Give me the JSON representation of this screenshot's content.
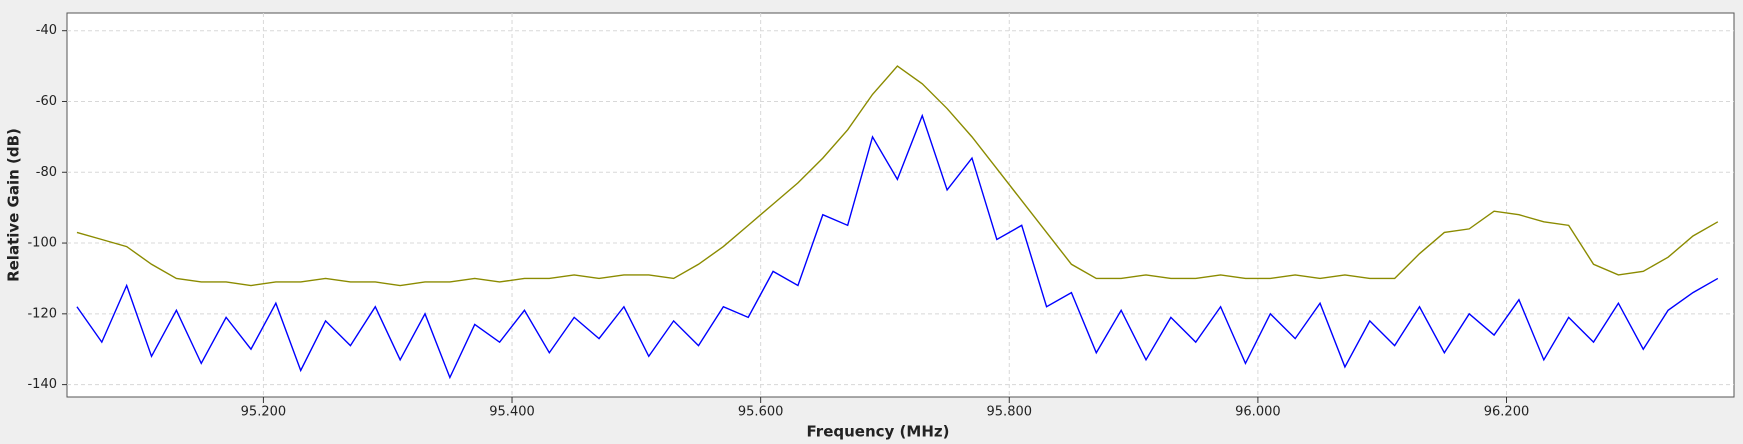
{
  "chart_data": {
    "type": "line",
    "xlabel": "Frequency (MHz)",
    "ylabel": "Relative Gain (dB)",
    "x": [
      95.05,
      95.07,
      95.09,
      95.11,
      95.13,
      95.15,
      95.17,
      95.19,
      95.21,
      95.23,
      95.25,
      95.27,
      95.29,
      95.31,
      95.33,
      95.35,
      95.37,
      95.39,
      95.41,
      95.43,
      95.45,
      95.47,
      95.49,
      95.51,
      95.53,
      95.55,
      95.57,
      95.59,
      95.61,
      95.63,
      95.65,
      95.67,
      95.69,
      95.71,
      95.73,
      95.75,
      95.77,
      95.79,
      95.81,
      95.83,
      95.85,
      95.87,
      95.89,
      95.91,
      95.93,
      95.95,
      95.97,
      95.99,
      96.01,
      96.03,
      96.05,
      96.07,
      96.09,
      96.11,
      96.13,
      96.15,
      96.17,
      96.19,
      96.21,
      96.23,
      96.25,
      96.27,
      96.29,
      96.31,
      96.33,
      96.35,
      96.37
    ],
    "series": [
      {
        "color": "#8b8b00",
        "values": [
          -97,
          -99,
          -101,
          -106,
          -110,
          -111,
          -111,
          -112,
          -111,
          -111,
          -110,
          -111,
          -111,
          -112,
          -111,
          -111,
          -110,
          -111,
          -110,
          -110,
          -109,
          -110,
          -109,
          -109,
          -110,
          -106,
          -101,
          -95,
          -89,
          -83,
          -76,
          -68,
          -58,
          -50,
          -55,
          -62,
          -70,
          -79,
          -88,
          -97,
          -106,
          -110,
          -110,
          -109,
          -110,
          -110,
          -109,
          -110,
          -110,
          -109,
          -110,
          -109,
          -110,
          -110,
          -103,
          -97,
          -96,
          -91,
          -92,
          -94,
          -95,
          -106,
          -109,
          -108,
          -104,
          -98,
          -94
        ]
      },
      {
        "color": "#0000ff",
        "values": [
          -118,
          -128,
          -112,
          -132,
          -119,
          -134,
          -121,
          -130,
          -117,
          -136,
          -122,
          -129,
          -118,
          -133,
          -120,
          -138,
          -123,
          -128,
          -119,
          -131,
          -121,
          -127,
          -118,
          -132,
          -122,
          -129,
          -118,
          -121,
          -108,
          -112,
          -92,
          -95,
          -70,
          -82,
          -64,
          -85,
          -76,
          -99,
          -95,
          -118,
          -114,
          -131,
          -119,
          -133,
          -121,
          -128,
          -118,
          -134,
          -120,
          -127,
          -117,
          -135,
          -122,
          -129,
          -118,
          -131,
          -120,
          -126,
          -116,
          -133,
          -121,
          -128,
          -117,
          -130,
          -119,
          -114,
          -110
        ]
      }
    ],
    "xlim": [
      95.042,
      96.383
    ],
    "ylim": [
      -143.5,
      -35
    ],
    "xticks": [
      {
        "value": 95.2,
        "label": "95.200"
      },
      {
        "value": 95.4,
        "label": "95.400"
      },
      {
        "value": 95.6,
        "label": "95.600"
      },
      {
        "value": 95.8,
        "label": "95.800"
      },
      {
        "value": 96.0,
        "label": "96.000"
      },
      {
        "value": 96.2,
        "label": "96.200"
      }
    ],
    "yticks": [
      -140,
      -120,
      -100,
      -80,
      -60,
      -40
    ],
    "grid": true
  }
}
